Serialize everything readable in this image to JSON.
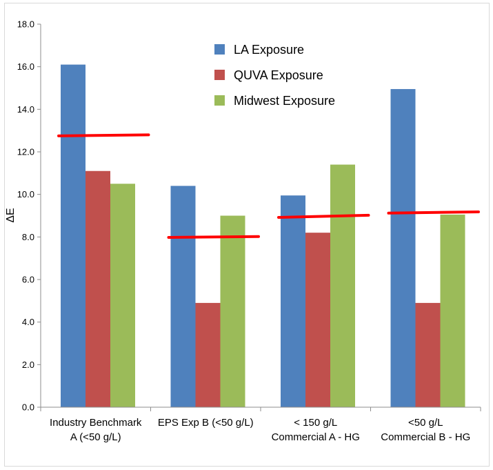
{
  "chart_data": {
    "type": "bar",
    "ylabel": "ΔE",
    "ylim": [
      0,
      18
    ],
    "ytick_step": 2,
    "ytick_labels": [
      "0.0",
      "2.0",
      "4.0",
      "6.0",
      "8.0",
      "10.0",
      "12.0",
      "14.0",
      "16.0",
      "18.0"
    ],
    "grid": false,
    "legend_position": "top-center",
    "categories": [
      [
        "Industry Benchmark",
        "A (<50 g/L)"
      ],
      [
        "EPS Exp B (<50 g/L)"
      ],
      [
        "< 150 g/L",
        "Commercial A - HG"
      ],
      [
        "<50 g/L",
        "Commercial B - HG"
      ]
    ],
    "series": [
      {
        "name": "LA Exposure",
        "color": "#4f81bd",
        "values": [
          16.1,
          10.4,
          9.95,
          14.95
        ]
      },
      {
        "name": "QUVA Exposure",
        "color": "#c0504d",
        "values": [
          11.1,
          4.9,
          8.2,
          4.9
        ]
      },
      {
        "name": "Midwest Exposure",
        "color": "#9bbb59",
        "values": [
          10.5,
          9.0,
          11.4,
          9.05
        ]
      }
    ],
    "reference_lines": {
      "color": "#ff0000",
      "values": [
        {
          "category_index": 0,
          "start": 12.75,
          "end": 12.8
        },
        {
          "category_index": 1,
          "start": 7.98,
          "end": 8.02
        },
        {
          "category_index": 2,
          "start": 8.92,
          "end": 9.02
        },
        {
          "category_index": 3,
          "start": 9.12,
          "end": 9.18
        }
      ]
    }
  }
}
